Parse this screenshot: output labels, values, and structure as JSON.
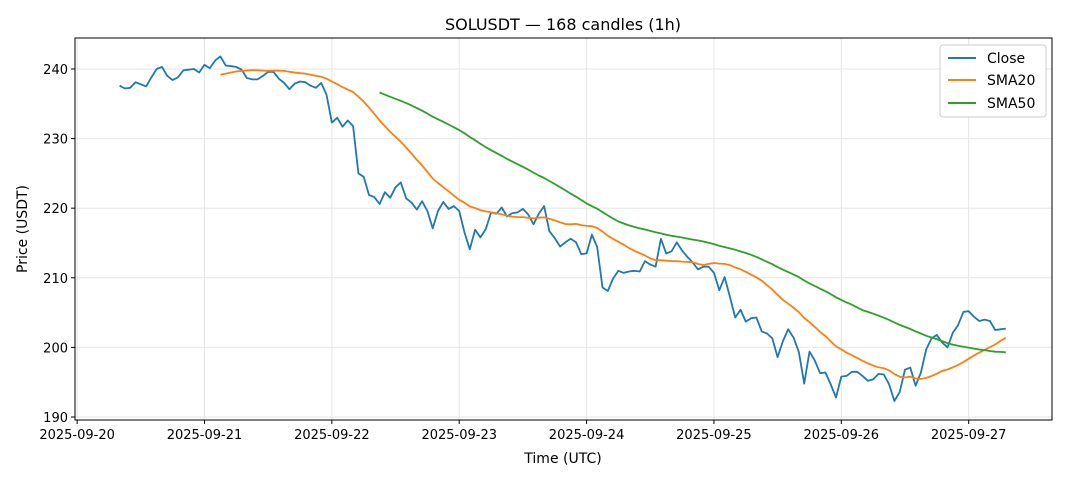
{
  "chart_data": {
    "type": "line",
    "title": "SOLUSDT — 168 candles (1h)",
    "xlabel": "Time (UTC)",
    "ylabel": "Price (USDT)",
    "start_time": "2025-09-20 08:00",
    "interval_hours": 1,
    "xlim_hours_from_2025_09_20": [
      -0.4,
      183.7
    ],
    "ylim": [
      189.57,
      244.45
    ],
    "x_ticks": [
      "2025-09-20",
      "2025-09-21",
      "2025-09-22",
      "2025-09-23",
      "2025-09-24",
      "2025-09-25",
      "2025-09-26",
      "2025-09-27"
    ],
    "y_ticks": [
      190,
      200,
      210,
      220,
      230,
      240
    ],
    "grid": true,
    "legend_position": "top-right",
    "series": [
      {
        "name": "Close",
        "color": "#1f77b4",
        "values": [
          237.6,
          237.2,
          237.3,
          238.1,
          237.8,
          237.5,
          238.8,
          240.0,
          240.3,
          239.0,
          238.4,
          238.8,
          239.8,
          239.9,
          240.0,
          239.5,
          240.6,
          240.1,
          241.2,
          241.8,
          240.5,
          240.4,
          240.3,
          239.9,
          238.7,
          238.5,
          238.5,
          239.0,
          239.6,
          239.6,
          238.6,
          238.0,
          237.1,
          237.9,
          238.2,
          238.1,
          237.6,
          237.3,
          238.0,
          236.3,
          232.3,
          233.0,
          231.7,
          232.6,
          231.8,
          225.0,
          224.5,
          221.9,
          221.6,
          220.6,
          222.3,
          221.5,
          223.0,
          223.7,
          221.4,
          220.8,
          219.8,
          221.0,
          219.6,
          217.1,
          219.6,
          220.9,
          219.9,
          220.3,
          219.6,
          216.5,
          214.1,
          216.9,
          215.8,
          217.0,
          219.4,
          219.2,
          220.1,
          218.8,
          219.3,
          219.4,
          219.9,
          219.1,
          217.7,
          219.2,
          220.3,
          216.7,
          215.7,
          214.5,
          215.1,
          215.6,
          215.1,
          213.4,
          213.5,
          216.2,
          214.4,
          208.6,
          208.1,
          209.9,
          211.0,
          210.7,
          210.9,
          211.0,
          210.9,
          212.4,
          211.9,
          211.6,
          215.6,
          213.5,
          213.8,
          215.1,
          213.9,
          213.0,
          212.2,
          211.2,
          211.6,
          211.6,
          210.7,
          208.2,
          210.1,
          207.3,
          204.3,
          205.4,
          203.7,
          204.2,
          204.3,
          202.3,
          202.0,
          201.3,
          198.6,
          200.9,
          202.6,
          201.4,
          199.3,
          194.8,
          199.4,
          198.1,
          196.3,
          196.4,
          194.7,
          192.8,
          195.8,
          195.9,
          196.5,
          196.5,
          195.9,
          195.2,
          195.4,
          196.2,
          196.1,
          194.7,
          192.3,
          193.6,
          196.8,
          197.1,
          194.5,
          196.4,
          199.7,
          201.3,
          201.8,
          200.7,
          200.0,
          202.1,
          203.2,
          205.1,
          205.2,
          204.4,
          203.8,
          204.0,
          203.8,
          202.5,
          202.6,
          202.7
        ]
      },
      {
        "name": "SMA20",
        "color": "#ff7f0e",
        "window": 20
      },
      {
        "name": "SMA50",
        "color": "#2ca02c",
        "window": 50
      }
    ]
  }
}
